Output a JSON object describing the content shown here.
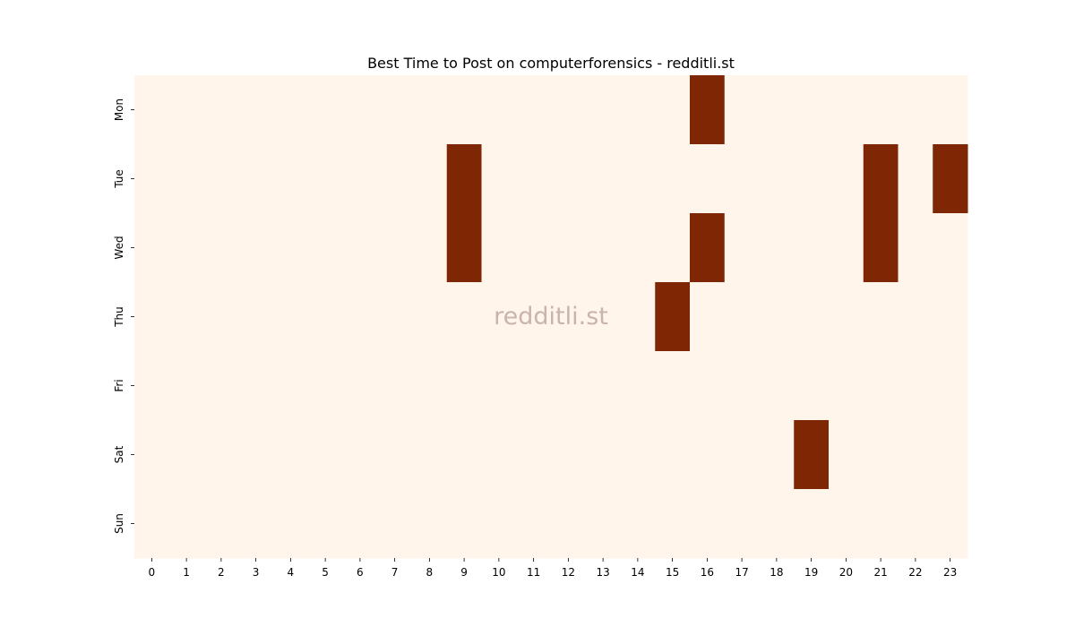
{
  "chart_data": {
    "type": "heatmap",
    "title": "Best Time to Post on computerforensics - redditli.st",
    "watermark": "redditli.st",
    "xlabel": "",
    "ylabel": "",
    "x": [
      "0",
      "1",
      "2",
      "3",
      "4",
      "5",
      "6",
      "7",
      "8",
      "9",
      "10",
      "11",
      "12",
      "13",
      "14",
      "15",
      "16",
      "17",
      "18",
      "19",
      "20",
      "21",
      "22",
      "23"
    ],
    "y": [
      "Mon",
      "Tue",
      "Wed",
      "Thu",
      "Fri",
      "Sat",
      "Sun"
    ],
    "values": [
      [
        0,
        0,
        0,
        0,
        0,
        0,
        0,
        0,
        0,
        0,
        0,
        0,
        0,
        0,
        0,
        0,
        1,
        0,
        0,
        0,
        0,
        0,
        0,
        0
      ],
      [
        0,
        0,
        0,
        0,
        0,
        0,
        0,
        0,
        0,
        1,
        0,
        0,
        0,
        0,
        0,
        0,
        0,
        0,
        0,
        0,
        0,
        1,
        0,
        1
      ],
      [
        0,
        0,
        0,
        0,
        0,
        0,
        0,
        0,
        0,
        1,
        0,
        0,
        0,
        0,
        0,
        0,
        1,
        0,
        0,
        0,
        0,
        1,
        0,
        0
      ],
      [
        0,
        0,
        0,
        0,
        0,
        0,
        0,
        0,
        0,
        0,
        0,
        0,
        0,
        0,
        0,
        1,
        0,
        0,
        0,
        0,
        0,
        0,
        0,
        0
      ],
      [
        0,
        0,
        0,
        0,
        0,
        0,
        0,
        0,
        0,
        0,
        0,
        0,
        0,
        0,
        0,
        0,
        0,
        0,
        0,
        0,
        0,
        0,
        0,
        0
      ],
      [
        0,
        0,
        0,
        0,
        0,
        0,
        0,
        0,
        0,
        0,
        0,
        0,
        0,
        0,
        0,
        0,
        0,
        0,
        0,
        1,
        0,
        0,
        0,
        0
      ],
      [
        0,
        0,
        0,
        0,
        0,
        0,
        0,
        0,
        0,
        0,
        0,
        0,
        0,
        0,
        0,
        0,
        0,
        0,
        0,
        0,
        0,
        0,
        0,
        0
      ]
    ],
    "colors": {
      "low": "#fff5eb",
      "high": "#7f2704"
    },
    "grid": false,
    "legend": "none"
  }
}
